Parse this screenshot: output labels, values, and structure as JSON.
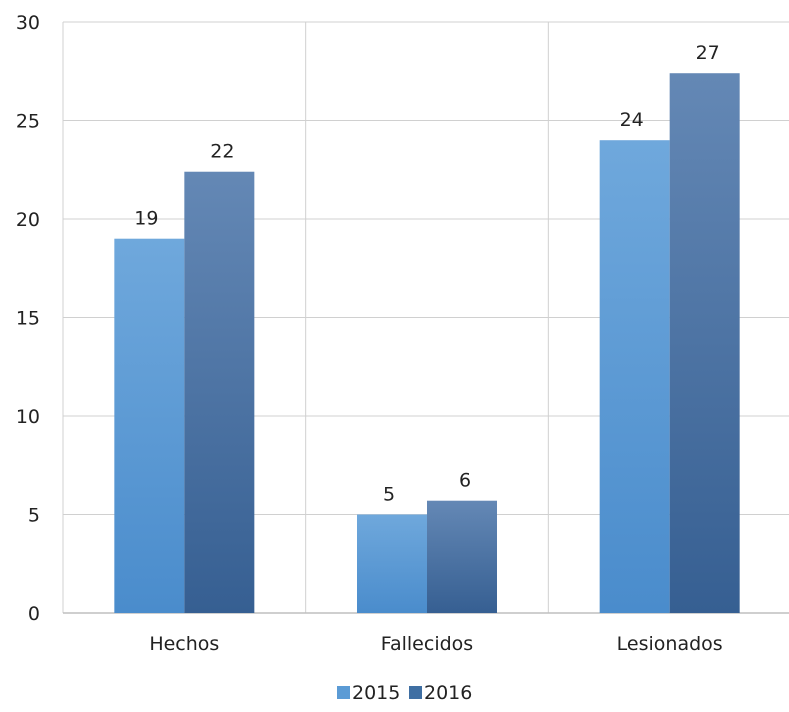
{
  "chart_data": {
    "type": "bar",
    "title": "",
    "xlabel": "",
    "ylabel": "",
    "categories": [
      "Hechos",
      "Fallecidos",
      "Lesionados"
    ],
    "series": [
      {
        "name": "2015",
        "values": [
          19,
          5,
          24
        ],
        "labels": [
          "19",
          "5",
          "24"
        ],
        "color": "#5b9bd5"
      },
      {
        "name": "2016",
        "values": [
          22.4,
          5.7,
          27.4
        ],
        "labels": [
          "22",
          "6",
          "27"
        ],
        "color": "#3f6fa3"
      }
    ],
    "ylim": [
      0,
      30
    ],
    "yticks": [
      "0",
      "5",
      "10",
      "15",
      "20",
      "25",
      "30"
    ],
    "grid": true,
    "legend_position": "bottom",
    "colors": {
      "gridline": "#d0d0d0",
      "axis": "#bfbfbf",
      "text": "#222222"
    }
  }
}
